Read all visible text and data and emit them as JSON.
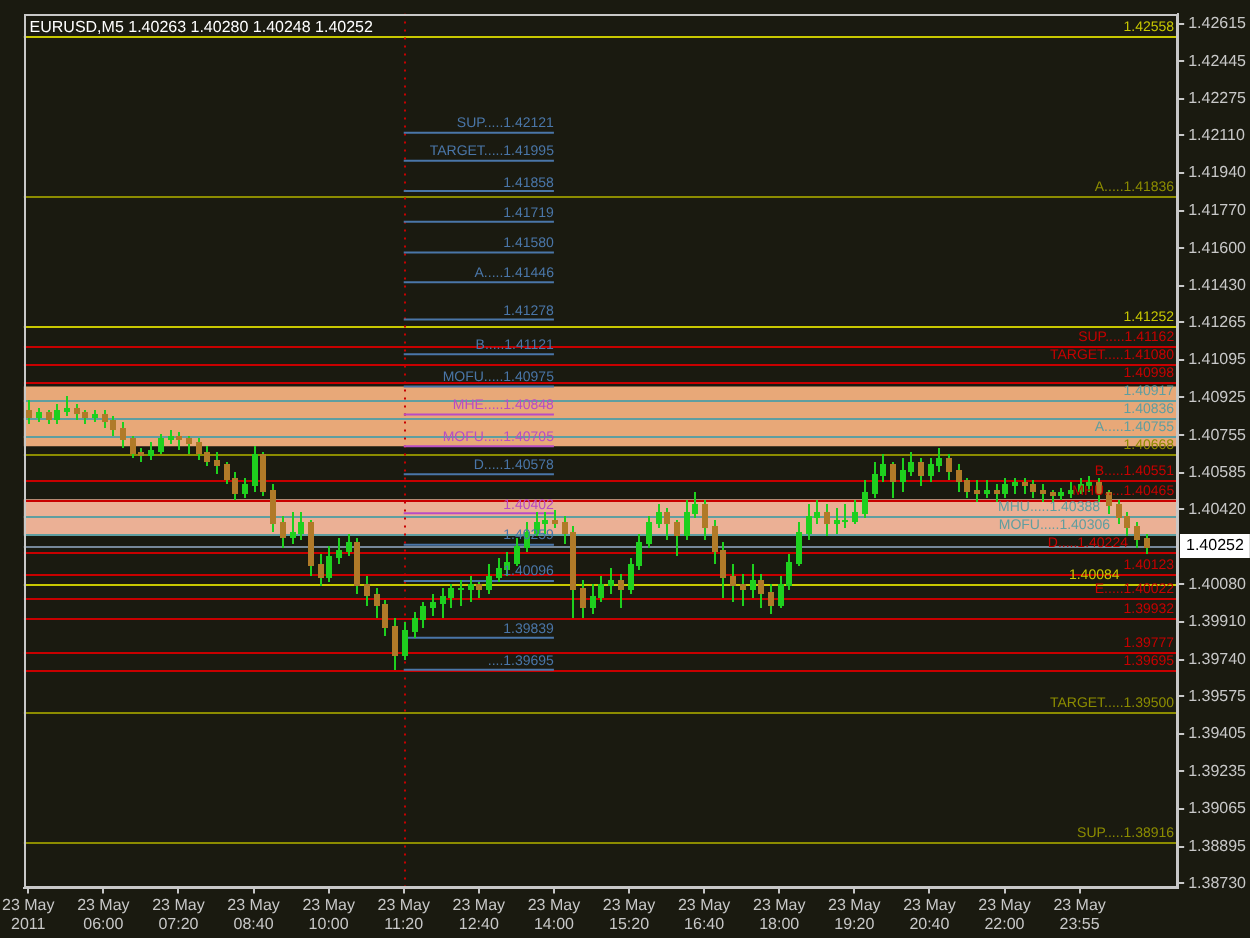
{
  "chart_data": {
    "type": "candlestick",
    "title": "EURUSD,M5 1.40263 1.40280 1.40248 1.40252",
    "color": "#1ed01e",
    "categories": [
      "23 May 2011",
      null,
      null,
      null,
      null,
      null,
      null,
      null,
      "23 May 06:00",
      null,
      null,
      null,
      null,
      null,
      null,
      null,
      "23 May 07:20",
      null,
      null,
      null,
      null,
      null,
      null,
      null,
      "23 May 08:40",
      null,
      null,
      null,
      null,
      null,
      null,
      null,
      "23 May 10:00",
      null,
      null,
      null,
      null,
      null,
      null,
      null,
      "23 May 11:20",
      null,
      null,
      null,
      null,
      null,
      null,
      null,
      "23 May 12:40",
      null,
      null,
      null,
      null,
      null,
      null,
      null,
      "23 May 14:00",
      null,
      null,
      null,
      null,
      null,
      null,
      null,
      "23 May 15:20",
      null,
      null,
      null,
      null,
      null,
      null,
      null,
      "23 May 16:40",
      null,
      null,
      null,
      null,
      null,
      null,
      null,
      "23 May 18:00",
      null,
      null,
      null,
      null,
      null,
      null,
      null,
      "23 May 19:20",
      null,
      null,
      null,
      null,
      null,
      null,
      null,
      "23 May 20:40",
      null,
      null,
      null,
      null,
      null,
      null,
      null,
      "23 May 22:00",
      null,
      null,
      null,
      null,
      null,
      null,
      null,
      "23 May 23:55",
      null,
      null,
      null,
      null,
      null,
      null,
      null
    ],
    "ohlc": [
      [
        1.4087,
        1.4091,
        1.4081,
        1.4084
      ],
      [
        1.4084,
        1.4088,
        1.4082,
        1.4086
      ],
      [
        1.4086,
        1.4087,
        1.4081,
        1.4083
      ],
      [
        1.4083,
        1.409,
        1.4081,
        1.4087
      ],
      [
        1.4087,
        1.4093,
        1.4085,
        1.4088
      ],
      [
        1.4088,
        1.409,
        1.4083,
        1.4086
      ],
      [
        1.4086,
        1.4087,
        1.4081,
        1.4084
      ],
      [
        1.4084,
        1.4087,
        1.4082,
        1.4085
      ],
      [
        1.4085,
        1.4087,
        1.408,
        1.4082
      ],
      [
        1.4082,
        1.4084,
        1.4076,
        1.4079
      ],
      [
        1.4079,
        1.4081,
        1.4071,
        1.4074
      ],
      [
        1.4074,
        1.4075,
        1.4066,
        1.4068
      ],
      [
        1.4068,
        1.407,
        1.4064,
        1.4067
      ],
      [
        1.4067,
        1.4072,
        1.4065,
        1.4069
      ],
      [
        1.4069,
        1.4076,
        1.4068,
        1.4074
      ],
      [
        1.4074,
        1.4078,
        1.4072,
        1.4075
      ],
      [
        1.4075,
        1.4077,
        1.407,
        1.4074
      ],
      [
        1.4074,
        1.4075,
        1.4068,
        1.4072
      ],
      [
        1.4072,
        1.4074,
        1.4065,
        1.4068
      ],
      [
        1.4068,
        1.4071,
        1.4062,
        1.4064
      ],
      [
        1.4064,
        1.4068,
        1.4059,
        1.4062
      ],
      [
        1.4062,
        1.4063,
        1.4054,
        1.4056
      ],
      [
        1.4056,
        1.4059,
        1.4047,
        1.405
      ],
      [
        1.405,
        1.4056,
        1.4048,
        1.4053
      ],
      [
        1.4053,
        1.4071,
        1.4051,
        1.4067
      ],
      [
        1.4067,
        1.4068,
        1.4049,
        1.4051
      ],
      [
        1.4051,
        1.4053,
        1.4033,
        1.4036
      ],
      [
        1.4036,
        1.4039,
        1.4025,
        1.403
      ],
      [
        1.403,
        1.4041,
        1.4027,
        1.4032
      ],
      [
        1.4032,
        1.4041,
        1.4029,
        1.4036
      ],
      [
        1.4036,
        1.4037,
        1.4013,
        1.4017
      ],
      [
        1.4017,
        1.4022,
        1.4008,
        1.4012
      ],
      [
        1.4012,
        1.4025,
        1.401,
        1.4021
      ],
      [
        1.4021,
        1.4029,
        1.4018,
        1.4024
      ],
      [
        1.4024,
        1.4031,
        1.4022,
        1.4027
      ],
      [
        1.4027,
        1.4029,
        1.4005,
        1.4008
      ],
      [
        1.4008,
        1.4012,
        1.3999,
        1.4004
      ],
      [
        1.4004,
        1.4006,
        1.3994,
        1.3999
      ],
      [
        1.3999,
        1.4001,
        1.3986,
        1.3989
      ],
      [
        1.3989,
        1.3993,
        1.397,
        1.3977
      ],
      [
        1.3977,
        1.3991,
        1.3975,
        1.3987
      ],
      [
        1.3987,
        1.3996,
        1.3985,
        1.3993
      ],
      [
        1.3993,
        1.4,
        1.3989,
        1.3998
      ],
      [
        1.3998,
        1.4004,
        1.3995,
        1.4
      ],
      [
        1.4,
        1.4006,
        1.3994,
        1.4003
      ],
      [
        1.4003,
        1.4008,
        1.3998,
        1.4006
      ],
      [
        1.4006,
        1.401,
        1.3999,
        1.4006
      ],
      [
        1.4006,
        1.4012,
        1.4001,
        1.4008
      ],
      [
        1.4008,
        1.4009,
        1.4003,
        1.4006
      ],
      [
        1.4006,
        1.4017,
        1.4005,
        1.4012
      ],
      [
        1.4012,
        1.402,
        1.401,
        1.4015
      ],
      [
        1.4015,
        1.4023,
        1.4013,
        1.4018
      ],
      [
        1.4018,
        1.4029,
        1.4017,
        1.4025
      ],
      [
        1.4025,
        1.4036,
        1.4024,
        1.4032
      ],
      [
        1.4032,
        1.4041,
        1.4031,
        1.4036
      ],
      [
        1.4036,
        1.4041,
        1.4032,
        1.4037
      ],
      [
        1.4037,
        1.4042,
        1.4034,
        1.4036
      ],
      [
        1.4036,
        1.4039,
        1.4027,
        1.4032
      ],
      [
        1.4032,
        1.4034,
        1.3994,
        1.4006
      ],
      [
        1.4006,
        1.401,
        1.3994,
        1.3998
      ],
      [
        1.3998,
        1.4008,
        1.3996,
        1.4003
      ],
      [
        1.4003,
        1.4012,
        1.4001,
        1.4008
      ],
      [
        1.4008,
        1.4015,
        1.4005,
        1.401
      ],
      [
        1.401,
        1.4013,
        1.3998,
        1.4006
      ],
      [
        1.4006,
        1.402,
        1.4005,
        1.4017
      ],
      [
        1.4017,
        1.4031,
        1.4015,
        1.4027
      ],
      [
        1.4027,
        1.4039,
        1.4025,
        1.4036
      ],
      [
        1.4036,
        1.4044,
        1.4034,
        1.4041
      ],
      [
        1.4041,
        1.4043,
        1.4029,
        1.4036
      ],
      [
        1.4036,
        1.4037,
        1.4022,
        1.4031
      ],
      [
        1.4031,
        1.4046,
        1.4029,
        1.4041
      ],
      [
        1.4041,
        1.405,
        1.4039,
        1.4044
      ],
      [
        1.4044,
        1.4046,
        1.4029,
        1.4034
      ],
      [
        1.4034,
        1.4037,
        1.4018,
        1.4024
      ],
      [
        1.4024,
        1.4027,
        1.4003,
        1.4012
      ],
      [
        1.4012,
        1.4017,
        1.4001,
        1.4008
      ],
      [
        1.4008,
        1.4013,
        1.3999,
        1.4006
      ],
      [
        1.4006,
        1.4017,
        1.4003,
        1.401
      ],
      [
        1.401,
        1.4013,
        1.3998,
        1.4005
      ],
      [
        1.4005,
        1.4008,
        1.3996,
        1.3999
      ],
      [
        1.3999,
        1.4012,
        1.3998,
        1.4008
      ],
      [
        1.4008,
        1.4022,
        1.4006,
        1.4018
      ],
      [
        1.4018,
        1.4036,
        1.4017,
        1.4032
      ],
      [
        1.4032,
        1.4044,
        1.4029,
        1.4039
      ],
      [
        1.4039,
        1.4046,
        1.4036,
        1.4041
      ],
      [
        1.4041,
        1.4044,
        1.4031,
        1.4036
      ],
      [
        1.4036,
        1.4043,
        1.4032,
        1.4037
      ],
      [
        1.4037,
        1.4044,
        1.4034,
        1.4037
      ],
      [
        1.4037,
        1.4046,
        1.4036,
        1.4041
      ],
      [
        1.4041,
        1.4055,
        1.4039,
        1.405
      ],
      [
        1.405,
        1.4063,
        1.4048,
        1.4058
      ],
      [
        1.4058,
        1.4067,
        1.4055,
        1.4062
      ],
      [
        1.4062,
        1.4063,
        1.4048,
        1.4055
      ],
      [
        1.4055,
        1.4065,
        1.4051,
        1.406
      ],
      [
        1.406,
        1.4068,
        1.4058,
        1.4063
      ],
      [
        1.4063,
        1.4065,
        1.4053,
        1.4058
      ],
      [
        1.4058,
        1.4065,
        1.4055,
        1.4062
      ],
      [
        1.4062,
        1.407,
        1.406,
        1.4065
      ],
      [
        1.4065,
        1.4067,
        1.4056,
        1.406
      ],
      [
        1.406,
        1.4062,
        1.4051,
        1.4055
      ],
      [
        1.4055,
        1.4056,
        1.4048,
        1.4051
      ],
      [
        1.4051,
        1.4055,
        1.4046,
        1.405
      ],
      [
        1.405,
        1.4055,
        1.4048,
        1.4051
      ],
      [
        1.4051,
        1.4053,
        1.4046,
        1.405
      ],
      [
        1.405,
        1.4056,
        1.4048,
        1.4053
      ],
      [
        1.4053,
        1.4056,
        1.405,
        1.4054
      ],
      [
        1.4054,
        1.4056,
        1.405,
        1.4053
      ],
      [
        1.4053,
        1.4055,
        1.4048,
        1.4051
      ],
      [
        1.4051,
        1.4053,
        1.4046,
        1.405
      ],
      [
        1.405,
        1.4051,
        1.4046,
        1.4049
      ],
      [
        1.4049,
        1.4052,
        1.4047,
        1.405
      ],
      [
        1.405,
        1.4054,
        1.4048,
        1.4051
      ],
      [
        1.4051,
        1.4056,
        1.405,
        1.4053
      ],
      [
        1.4053,
        1.4057,
        1.4051,
        1.4054
      ],
      [
        1.4054,
        1.4056,
        1.4046,
        1.405
      ],
      [
        1.405,
        1.4051,
        1.4041,
        1.4044
      ],
      [
        1.4044,
        1.4046,
        1.4036,
        1.4039
      ],
      [
        1.4039,
        1.4041,
        1.4031,
        1.4034
      ],
      [
        1.4034,
        1.4036,
        1.4025,
        1.4029
      ],
      [
        1.4029,
        1.4031,
        1.4023,
        1.4025
      ]
    ],
    "colors": [
      "#b07a28",
      "#1ed01e",
      "#b07a28",
      "#1ed01e",
      "#1ed01e",
      "#b07a28",
      "#b07a28",
      "#1ed01e",
      "#b07a28",
      "#b07a28",
      "#b07a28",
      "#b07a28",
      "#b07a28",
      "#1ed01e",
      "#1ed01e",
      "#1ed01e",
      "#b07a28",
      "#b07a28",
      "#b07a28",
      "#b07a28",
      "#b07a28",
      "#b07a28",
      "#b07a28",
      "#1ed01e",
      "#1ed01e",
      "#b07a28",
      "#b07a28",
      "#b07a28",
      "#1ed01e",
      "#1ed01e",
      "#b07a28",
      "#b07a28",
      "#1ed01e",
      "#1ed01e",
      "#1ed01e",
      "#b07a28",
      "#b07a28",
      "#b07a28",
      "#b07a28",
      "#b07a28",
      "#1ed01e",
      "#1ed01e",
      "#1ed01e",
      "#1ed01e",
      "#1ed01e",
      "#1ed01e",
      "#1ed01e",
      "#1ed01e",
      "#b07a28",
      "#1ed01e",
      "#1ed01e",
      "#1ed01e",
      "#1ed01e",
      "#1ed01e",
      "#1ed01e",
      "#1ed01e",
      "#b07a28",
      "#b07a28",
      "#b07a28",
      "#b07a28",
      "#1ed01e",
      "#1ed01e",
      "#1ed01e",
      "#b07a28",
      "#1ed01e",
      "#1ed01e",
      "#1ed01e",
      "#1ed01e",
      "#b07a28",
      "#b07a28",
      "#1ed01e",
      "#1ed01e",
      "#b07a28",
      "#b07a28",
      "#b07a28",
      "#b07a28",
      "#b07a28",
      "#1ed01e",
      "#b07a28",
      "#b07a28",
      "#1ed01e",
      "#1ed01e",
      "#1ed01e",
      "#1ed01e",
      "#1ed01e",
      "#b07a28",
      "#1ed01e",
      "#1ed01e",
      "#1ed01e",
      "#1ed01e",
      "#1ed01e",
      "#1ed01e",
      "#b07a28",
      "#1ed01e",
      "#1ed01e",
      "#b07a28",
      "#1ed01e",
      "#1ed01e",
      "#b07a28",
      "#b07a28",
      "#b07a28",
      "#b07a28",
      "#1ed01e",
      "#b07a28",
      "#1ed01e",
      "#1ed01e",
      "#b07a28",
      "#b07a28",
      "#b07a28",
      "#b07a28",
      "#1ed01e",
      "#1ed01e",
      "#1ed01e",
      "#1ed01e",
      "#b07a28",
      "#b07a28",
      "#b07a28",
      "#b07a28",
      "#b07a28",
      "#b07a28"
    ],
    "series": [
      {
        "name": "SUP.....1.42121",
        "type": "line",
        "color": "#4a76a8",
        "x": [
          "23 May 11:20",
          "23 May 14:00"
        ],
        "values": [
          1.42121,
          1.42121
        ]
      },
      {
        "name": "TARGET.....1.41995",
        "type": "line",
        "color": "#4a76a8",
        "x": [
          "23 May 11:20",
          "23 May 14:00"
        ],
        "values": [
          1.41995,
          1.41995
        ]
      },
      {
        "name": "1.41858",
        "type": "line",
        "color": "#4a76a8",
        "x": [
          "23 May 11:20",
          "23 May 14:00"
        ],
        "values": [
          1.41858,
          1.41858
        ]
      },
      {
        "name": "1.41719",
        "type": "line",
        "color": "#4a76a8",
        "x": [
          "23 May 11:20",
          "23 May 14:00"
        ],
        "values": [
          1.41719,
          1.41719
        ]
      },
      {
        "name": "1.41580",
        "type": "line",
        "color": "#4a76a8",
        "x": [
          "23 May 11:20",
          "23 May 14:00"
        ],
        "values": [
          1.4158,
          1.4158
        ]
      },
      {
        "name": "A.....1.41446",
        "type": "line",
        "color": "#4a76a8",
        "x": [
          "23 May 11:20",
          "23 May 14:00"
        ],
        "values": [
          1.41446,
          1.41446
        ]
      },
      {
        "name": "1.41278",
        "type": "line",
        "color": "#4a76a8",
        "x": [
          "23 May 11:20",
          "23 May 14:00"
        ],
        "values": [
          1.41278,
          1.41278
        ]
      },
      {
        "name": "B.....1.41121",
        "type": "line",
        "color": "#4a76a8",
        "x": [
          "23 May 11:20",
          "23 May 14:00"
        ],
        "values": [
          1.41121,
          1.41121
        ]
      },
      {
        "name": "MOFU.....1.40975",
        "type": "line",
        "color": "#4a76a8",
        "x": [
          "23 May 11:20",
          "23 May 14:00"
        ],
        "values": [
          1.40975,
          1.40975
        ]
      },
      {
        "name": "MHE.....1.40848",
        "type": "line",
        "color": "#b84cc4",
        "x": [
          "23 May 11:20",
          "23 May 14:00"
        ],
        "values": [
          1.40848,
          1.40848
        ]
      },
      {
        "name": "MOFU.....1.40705",
        "type": "line",
        "color": "#b84cc4",
        "x": [
          "23 May 11:20",
          "23 May 14:00"
        ],
        "values": [
          1.40705,
          1.40705
        ]
      },
      {
        "name": "D.....1.40578",
        "type": "line",
        "color": "#4a76a8",
        "x": [
          "23 May 11:20",
          "23 May 14:00"
        ],
        "values": [
          1.40578,
          1.40578
        ]
      },
      {
        "name": "1.40402",
        "type": "line",
        "color": "#b84cc4",
        "x": [
          "23 May 11:20",
          "23 May 14:00"
        ],
        "values": [
          1.40402,
          1.40402
        ]
      },
      {
        "name": "1.40259",
        "type": "line",
        "color": "#4a76a8",
        "x": [
          "23 May 11:20",
          "23 May 14:00"
        ],
        "values": [
          1.40259,
          1.40259
        ]
      },
      {
        "name": "1.40096",
        "type": "line",
        "color": "#4a76a8",
        "x": [
          "23 May 11:20",
          "23 May 14:00"
        ],
        "values": [
          1.40096,
          1.40096
        ]
      },
      {
        "name": "1.39839",
        "type": "line",
        "color": "#4a76a8",
        "x": [
          "23 May 11:20",
          "23 May 14:00"
        ],
        "values": [
          1.39839,
          1.39839
        ]
      },
      {
        "name": "....1.39695",
        "type": "line",
        "color": "#4a76a8",
        "x": [
          "23 May 11:20",
          "23 May 14:00"
        ],
        "values": [
          1.39695,
          1.39695
        ]
      }
    ],
    "ylim": [
      1.3871,
      1.4266
    ],
    "yticks": [
      {
        "value": 1.3873,
        "label": "1.38730"
      },
      1.38895,
      1.39065,
      1.39235,
      1.39405,
      1.39575,
      {
        "value": 1.3974,
        "label": "1.39740"
      },
      {
        "value": 1.3991,
        "label": "1.39910"
      },
      {
        "value": 1.4008,
        "label": "1.40080"
      },
      {
        "value": 1.4042,
        "label": "1.40420"
      },
      1.40585,
      1.40755,
      1.40925,
      1.41095,
      1.41265,
      {
        "value": 1.4143,
        "label": "1.41430"
      },
      {
        "value": 1.416,
        "label": "1.41600"
      },
      {
        "value": 1.4177,
        "label": "1.41770"
      },
      {
        "value": 1.4194,
        "label": "1.41940"
      },
      {
        "value": 1.4211,
        "label": "1.42110"
      },
      1.42275,
      1.42445,
      1.42615
    ],
    "bands": [
      {
        "axis": "y",
        "from": 1.40705,
        "to": 1.40975,
        "color": "#e8a878"
      },
      {
        "axis": "y",
        "from": 1.40306,
        "to": 1.40465,
        "color": "#ebb095"
      }
    ],
    "ref_lines": [
      {
        "axis": "y",
        "value": 1.42558,
        "label": "1.42558",
        "color": "#c8c800"
      },
      {
        "axis": "y",
        "value": 1.41836,
        "label": "A.....1.41836",
        "color": "#8c8c00"
      },
      {
        "axis": "y",
        "value": 1.41252,
        "label": "1.41252",
        "color": "#c8c800"
      },
      {
        "axis": "y",
        "value": 1.41162,
        "label": "SUP.....1.41162",
        "color": "#c80000"
      },
      {
        "axis": "y",
        "value": 1.4108,
        "label": "TARGET.....1.41080",
        "color": "#c80000"
      },
      {
        "axis": "y",
        "value": 1.40998,
        "label": "1.40998",
        "color": "#c80000"
      },
      {
        "axis": "y",
        "value": 1.40917,
        "label": "1.40917",
        "color": "#5f9ea0"
      },
      {
        "axis": "y",
        "value": 1.40836,
        "label": "1.40836",
        "color": "#5f9ea0"
      },
      {
        "axis": "y",
        "value": 1.40755,
        "label": "A.....1.40755",
        "color": "#5f9ea0"
      },
      {
        "axis": "y",
        "value": 1.40668,
        "label": "1.40668",
        "color": "#8c8c00"
      },
      {
        "axis": "y",
        "value": 1.40551,
        "label": "B.....1.40551",
        "color": "#c80000"
      },
      {
        "axis": "y",
        "value": 1.40465,
        "label": "MHU.....1.40465",
        "color": "#c80000"
      },
      {
        "axis": "y",
        "value": 1.40388,
        "label": "MHU.....1.40388",
        "color": "#5f9ea0"
      },
      {
        "axis": "y",
        "value": 1.40306,
        "label": "MOFU.....1.40306",
        "color": "#5f9ea0"
      },
      {
        "axis": "y",
        "value": 1.40252,
        "color": "#778899"
      },
      {
        "axis": "y",
        "value": 1.40224,
        "label": "D.....1.40224",
        "color": "#c80000"
      },
      {
        "axis": "y",
        "value": 1.40123,
        "label": "1.40123",
        "color": "#c80000"
      },
      {
        "axis": "y",
        "value": 1.40084,
        "label": "1.40084",
        "color": "#c8c800"
      },
      {
        "axis": "y",
        "value": 1.40022,
        "label": "E.....1.40022",
        "color": "#c80000"
      },
      {
        "axis": "y",
        "value": 1.39932,
        "label": "1.39932",
        "color": "#c80000"
      },
      {
        "axis": "y",
        "value": 1.39777,
        "label": "1.39777",
        "color": "#c80000"
      },
      {
        "axis": "y",
        "value": 1.39695,
        "label": "1.39695",
        "color": "#c80000"
      },
      {
        "axis": "y",
        "value": 1.395,
        "label": "TARGET.....1.39500",
        "color": "#8c8c00"
      },
      {
        "axis": "y",
        "value": 1.38916,
        "label": "SUP.....1.38916",
        "color": "#8c8c00"
      },
      {
        "axis": "x",
        "value": "23 May 11:20",
        "color": "#c80000",
        "line_style": "dotted"
      }
    ],
    "annotations": [
      "1.40252"
    ]
  }
}
